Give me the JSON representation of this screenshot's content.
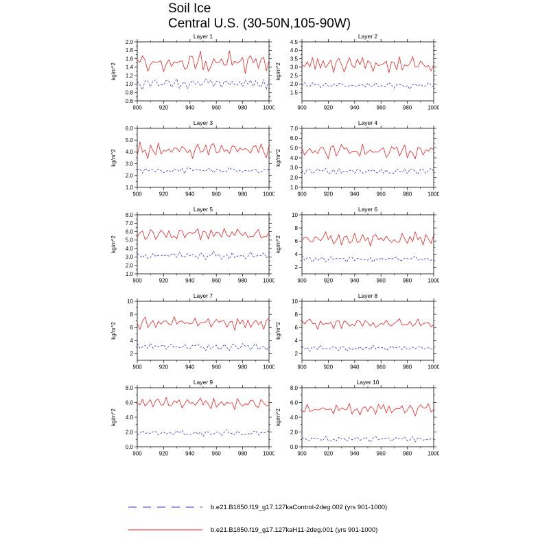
{
  "header": {
    "title": "Soil Ice",
    "subtitle": "Central U.S. (30-50N,105-90W)"
  },
  "chart_data": {
    "type": "line",
    "title": "Soil Ice",
    "subtitle": "Central U.S. (30-50N,105-90W)",
    "ylabel": "kg/m^2",
    "legend_position": "bottom",
    "grid": false,
    "x": {
      "label": "",
      "min": 900,
      "max": 1000,
      "ticks": [
        "900",
        "920",
        "940",
        "960",
        "980",
        "1000"
      ],
      "minor_step": 10,
      "points": 51
    },
    "noise": [
      0.15,
      -0.55,
      0.8,
      0.05,
      -0.72,
      0.42,
      -0.18,
      0.92,
      -0.38,
      0.28,
      -0.82,
      0.5,
      0.02,
      -0.32,
      0.68,
      -0.62,
      0.22,
      0.58,
      -0.08,
      -0.9,
      0.38,
      0.78,
      -0.28,
      0.12,
      0.96,
      -0.22,
      0.48,
      -0.68,
      0.32,
      0.62,
      -0.42,
      -0.02,
      0.72,
      -0.52,
      0.18,
      0.88,
      -0.58,
      0.08,
      0.4,
      -0.25,
      0.66,
      -0.78,
      0.3,
      0.52,
      -0.12,
      0.76,
      -0.33,
      0.14,
      0.56,
      -0.45,
      0.34
    ],
    "series_meta": [
      {
        "key": "control",
        "label": "b.e21.B1850.f19_g17.127kaControl-2deg.002 (yrs 901-1000)",
        "color": "#3333cc",
        "style": "dashed"
      },
      {
        "key": "h11",
        "label": "b.e21.B1850.f19_g17.127kaH11-2deg.001 (yrs 901-1000)",
        "color": "#ee2222",
        "style": "solid"
      }
    ],
    "panels": [
      {
        "title": "Layer 1",
        "ylabel": "kg/m^2",
        "ylim": [
          0.6,
          2.0
        ],
        "yticks": [
          "0.6",
          "0.8",
          "1.0",
          "1.2",
          "1.4",
          "1.6",
          "1.8",
          "2.0"
        ],
        "series": [
          {
            "key": "control",
            "mean": 1.0,
            "amp": 0.15,
            "o1": 17,
            "o2": 23
          },
          {
            "key": "h11",
            "mean": 1.48,
            "amp": 0.3,
            "o1": 0,
            "o2": 5
          }
        ]
      },
      {
        "title": "Layer 2",
        "ylabel": "kg/m^2",
        "ylim": [
          1.0,
          4.5
        ],
        "yticks": [
          "1.5",
          "2.0",
          "2.5",
          "3.0",
          "3.5",
          "4.0",
          "4.5"
        ],
        "series": [
          {
            "key": "control",
            "mean": 1.9,
            "amp": 0.22,
            "o1": 20,
            "o2": 30
          },
          {
            "key": "h11",
            "mean": 3.1,
            "amp": 0.62,
            "o1": 3,
            "o2": 12
          }
        ]
      },
      {
        "title": "Layer 3",
        "ylabel": "kg/m^2",
        "ylim": [
          1.0,
          6.0
        ],
        "yticks": [
          "1.0",
          "2.0",
          "3.0",
          "4.0",
          "5.0",
          "6.0"
        ],
        "series": [
          {
            "key": "control",
            "mean": 2.4,
            "amp": 0.38,
            "o1": 23,
            "o2": 37
          },
          {
            "key": "h11",
            "mean": 4.1,
            "amp": 0.78,
            "o1": 6,
            "o2": 19
          }
        ]
      },
      {
        "title": "Layer 4",
        "ylabel": "kg/m^2",
        "ylim": [
          1.0,
          7.0
        ],
        "yticks": [
          "1.0",
          "2.0",
          "3.0",
          "4.0",
          "5.0",
          "6.0",
          "7.0"
        ],
        "series": [
          {
            "key": "control",
            "mean": 2.6,
            "amp": 0.4,
            "o1": 26,
            "o2": 44
          },
          {
            "key": "h11",
            "mean": 4.6,
            "amp": 0.95,
            "o1": 9,
            "o2": 26
          }
        ]
      },
      {
        "title": "Layer 5",
        "ylabel": "kg/m^2",
        "ylim": [
          1.0,
          8.0
        ],
        "yticks": [
          "1.0",
          "2.0",
          "3.0",
          "4.0",
          "5.0",
          "6.0",
          "7.0",
          "8.0"
        ],
        "series": [
          {
            "key": "control",
            "mean": 3.1,
            "amp": 0.55,
            "o1": 29,
            "o2": 0
          },
          {
            "key": "h11",
            "mean": 5.6,
            "amp": 1.05,
            "o1": 12,
            "o2": 33
          }
        ]
      },
      {
        "title": "Layer 6",
        "ylabel": "kg/m^2",
        "ylim": [
          1.0,
          10.0
        ],
        "yticks": [
          "2",
          "4",
          "6",
          "8",
          "10"
        ],
        "series": [
          {
            "key": "control",
            "mean": 3.2,
            "amp": 0.65,
            "o1": 32,
            "o2": 7
          },
          {
            "key": "h11",
            "mean": 6.2,
            "amp": 1.15,
            "o1": 15,
            "o2": 40
          }
        ]
      },
      {
        "title": "Layer 7",
        "ylabel": "kg/m^2",
        "ylim": [
          1.0,
          10.0
        ],
        "yticks": [
          "2",
          "4",
          "6",
          "8",
          "10"
        ],
        "series": [
          {
            "key": "control",
            "mean": 3.0,
            "amp": 0.65,
            "o1": 35,
            "o2": 14
          },
          {
            "key": "h11",
            "mean": 6.6,
            "amp": 1.15,
            "o1": 18,
            "o2": 47
          }
        ]
      },
      {
        "title": "Layer 8",
        "ylabel": "kg/m^2",
        "ylim": [
          1.0,
          10.0
        ],
        "yticks": [
          "2",
          "4",
          "6",
          "8",
          "10"
        ],
        "series": [
          {
            "key": "control",
            "mean": 2.8,
            "amp": 0.55,
            "o1": 38,
            "o2": 21
          },
          {
            "key": "h11",
            "mean": 6.5,
            "amp": 1.05,
            "o1": 21,
            "o2": 3
          }
        ]
      },
      {
        "title": "Layer 9",
        "ylabel": "kg/m^2",
        "ylim": [
          0.0,
          8.0
        ],
        "yticks": [
          "0.0",
          "2.0",
          "4.0",
          "6.0",
          "8.0"
        ],
        "series": [
          {
            "key": "control",
            "mean": 1.8,
            "amp": 0.55,
            "o1": 41,
            "o2": 28
          },
          {
            "key": "h11",
            "mean": 5.8,
            "amp": 1.0,
            "o1": 24,
            "o2": 10
          }
        ]
      },
      {
        "title": "Layer 10",
        "ylabel": "kg/m^2",
        "ylim": [
          0.0,
          8.0
        ],
        "yticks": [
          "0.0",
          "2.0",
          "4.0",
          "6.0",
          "8.0"
        ],
        "series": [
          {
            "key": "control",
            "mean": 1.0,
            "amp": 0.45,
            "o1": 44,
            "o2": 35
          },
          {
            "key": "h11",
            "mean": 5.0,
            "amp": 1.0,
            "o1": 27,
            "o2": 17
          }
        ]
      }
    ]
  }
}
